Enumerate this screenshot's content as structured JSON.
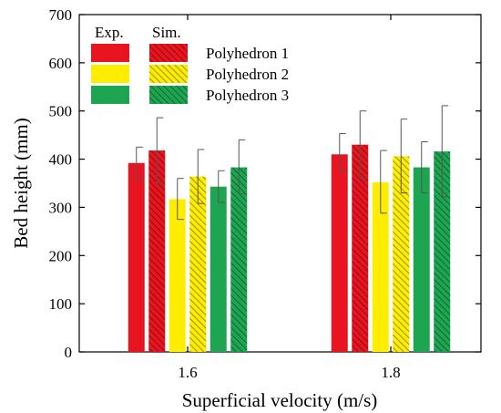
{
  "chart_data": {
    "type": "bar",
    "xlabel": "Superficial velocity (m/s)",
    "ylabel": "Bed height (mm)",
    "ylim": [
      0,
      700
    ],
    "yticks": [
      0,
      100,
      200,
      300,
      400,
      500,
      600,
      700
    ],
    "grid": false,
    "legend_placement": "top-left",
    "categories": [
      "1.6",
      "1.8"
    ],
    "legend": {
      "column_headers": [
        "Exp.",
        "Sim."
      ],
      "rows": [
        "Polyhedron 1",
        "Polyhedron 2",
        "Polyhedron 3"
      ]
    },
    "series": [
      {
        "name": "Polyhedron 1",
        "method": "Exp.",
        "color": "#e8141f",
        "hatched": false,
        "values": [
          392,
          410
        ],
        "error": [
          [
            359,
            425
          ],
          [
            375,
            453
          ]
        ]
      },
      {
        "name": "Polyhedron 1",
        "method": "Sim.",
        "color": "#e8141f",
        "hatched": true,
        "values": [
          418,
          430
        ],
        "error": [
          [
            350,
            486
          ],
          [
            360,
            500
          ]
        ]
      },
      {
        "name": "Polyhedron 2",
        "method": "Exp.",
        "color": "#ffed00",
        "hatched": false,
        "values": [
          317,
          352
        ],
        "error": [
          [
            275,
            360
          ],
          [
            288,
            418
          ]
        ]
      },
      {
        "name": "Polyhedron 2",
        "method": "Sim.",
        "color": "#ffed00",
        "hatched": true,
        "values": [
          364,
          406
        ],
        "error": [
          [
            308,
            420
          ],
          [
            330,
            483
          ]
        ]
      },
      {
        "name": "Polyhedron 3",
        "method": "Exp.",
        "color": "#1da552",
        "hatched": false,
        "values": [
          343,
          383
        ],
        "error": [
          [
            310,
            376
          ],
          [
            330,
            436
          ]
        ]
      },
      {
        "name": "Polyhedron 3",
        "method": "Sim.",
        "color": "#1da552",
        "hatched": true,
        "values": [
          383,
          416
        ],
        "error": [
          [
            328,
            440
          ],
          [
            322,
            511
          ]
        ]
      }
    ]
  }
}
